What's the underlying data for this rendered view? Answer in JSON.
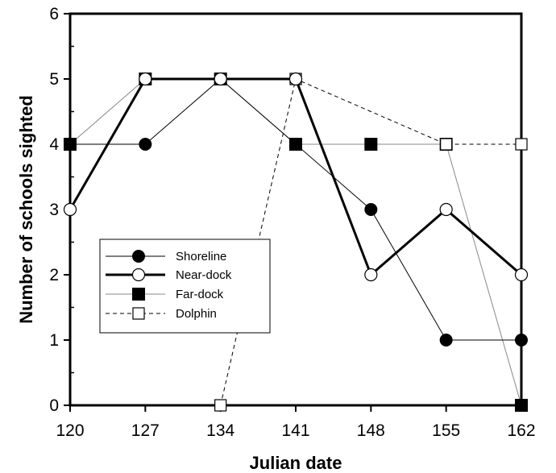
{
  "chart_data": {
    "type": "line",
    "title": "",
    "xlabel": "Julian date",
    "ylabel": "Number of schools sighted",
    "x": [
      120,
      127,
      134,
      141,
      148,
      155,
      162
    ],
    "xlim": [
      120,
      162
    ],
    "ylim": [
      0,
      6
    ],
    "x_ticks": [
      120,
      127,
      134,
      141,
      148,
      155,
      162
    ],
    "y_ticks": [
      0,
      1,
      2,
      3,
      4,
      5,
      6
    ],
    "grid": false,
    "legend_position": "left-center",
    "series": [
      {
        "name": "Shoreline",
        "marker": "filled-circle",
        "line": "thin-solid",
        "color": "#000000",
        "points": [
          [
            120,
            4
          ],
          [
            127,
            4
          ],
          [
            134,
            5
          ],
          [
            141,
            4
          ],
          [
            148,
            3
          ],
          [
            155,
            1
          ],
          [
            162,
            1
          ]
        ]
      },
      {
        "name": "Near-dock",
        "marker": "open-circle",
        "line": "thick-solid",
        "color": "#000000",
        "points": [
          [
            120,
            3
          ],
          [
            127,
            5
          ],
          [
            134,
            5
          ],
          [
            141,
            5
          ],
          [
            148,
            2
          ],
          [
            155,
            3
          ],
          [
            162,
            2
          ]
        ]
      },
      {
        "name": "Far-dock",
        "marker": "filled-square",
        "line": "thin-gray-solid",
        "color": "#888888",
        "points": [
          [
            120,
            4
          ],
          [
            127,
            5
          ],
          [
            134,
            5
          ],
          [
            141,
            4
          ],
          [
            148,
            4
          ],
          [
            155,
            4
          ],
          [
            162,
            0
          ]
        ]
      },
      {
        "name": "Dolphin",
        "marker": "open-square",
        "line": "dashed",
        "color": "#000000",
        "points": [
          [
            134,
            0
          ],
          [
            141,
            5
          ],
          [
            155,
            4
          ],
          [
            162,
            4
          ]
        ]
      }
    ]
  }
}
